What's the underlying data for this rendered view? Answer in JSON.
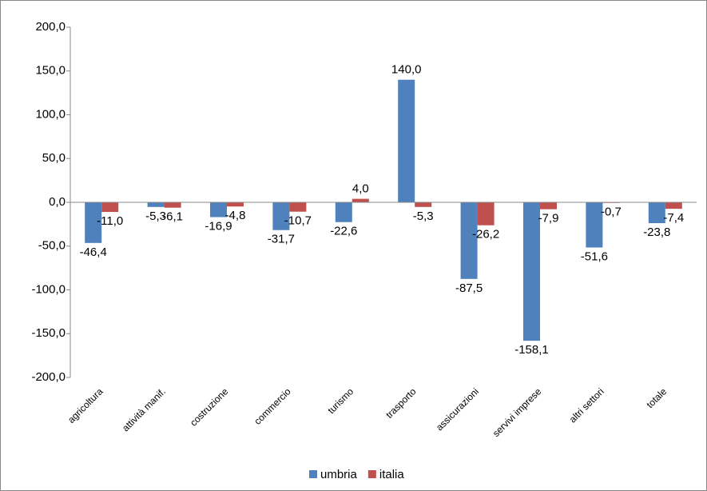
{
  "chart_data": {
    "type": "bar",
    "categories": [
      "agricoltura",
      "attività manif.",
      "costruzione",
      "commercio",
      "turismo",
      "trasporto",
      "assicurazioni",
      "servivi imprese",
      "altri settori",
      "totale"
    ],
    "series": [
      {
        "name": "umbria",
        "color": "#4f81bd",
        "values": [
          -46.4,
          -5.3,
          -16.9,
          -31.7,
          -22.6,
          140.0,
          -87.5,
          -158.1,
          -51.6,
          -23.8
        ],
        "value_labels": [
          "-46,4",
          "-5,3",
          "-16,9",
          "-31,7",
          "-22,6",
          "140,0",
          "-87,5",
          "-158,1",
          "-51,6",
          "-23,8"
        ]
      },
      {
        "name": "italia",
        "color": "#c0504d",
        "values": [
          -11.0,
          -6.1,
          -4.8,
          -10.7,
          4.0,
          -5.3,
          -26.2,
          -7.9,
          -0.7,
          -7.4
        ],
        "value_labels": [
          "-11,0",
          "-6,1",
          "-4,8",
          "-10,7",
          "4,0",
          "-5,3",
          "-26,2",
          "-7,9",
          "-0,7",
          "-7,4"
        ]
      }
    ],
    "ylim": [
      -200,
      200
    ],
    "yticks": [
      {
        "value": -200,
        "label": "-200,0"
      },
      {
        "value": -150,
        "label": "-150,0"
      },
      {
        "value": -100,
        "label": "-100,0"
      },
      {
        "value": -50,
        "label": "-50,0"
      },
      {
        "value": 0,
        "label": "0,0"
      },
      {
        "value": 50,
        "label": "50,0"
      },
      {
        "value": 100,
        "label": "100,0"
      },
      {
        "value": 150,
        "label": "150,0"
      },
      {
        "value": 200,
        "label": "200,0"
      }
    ],
    "grid": false,
    "legend": "bottom"
  }
}
